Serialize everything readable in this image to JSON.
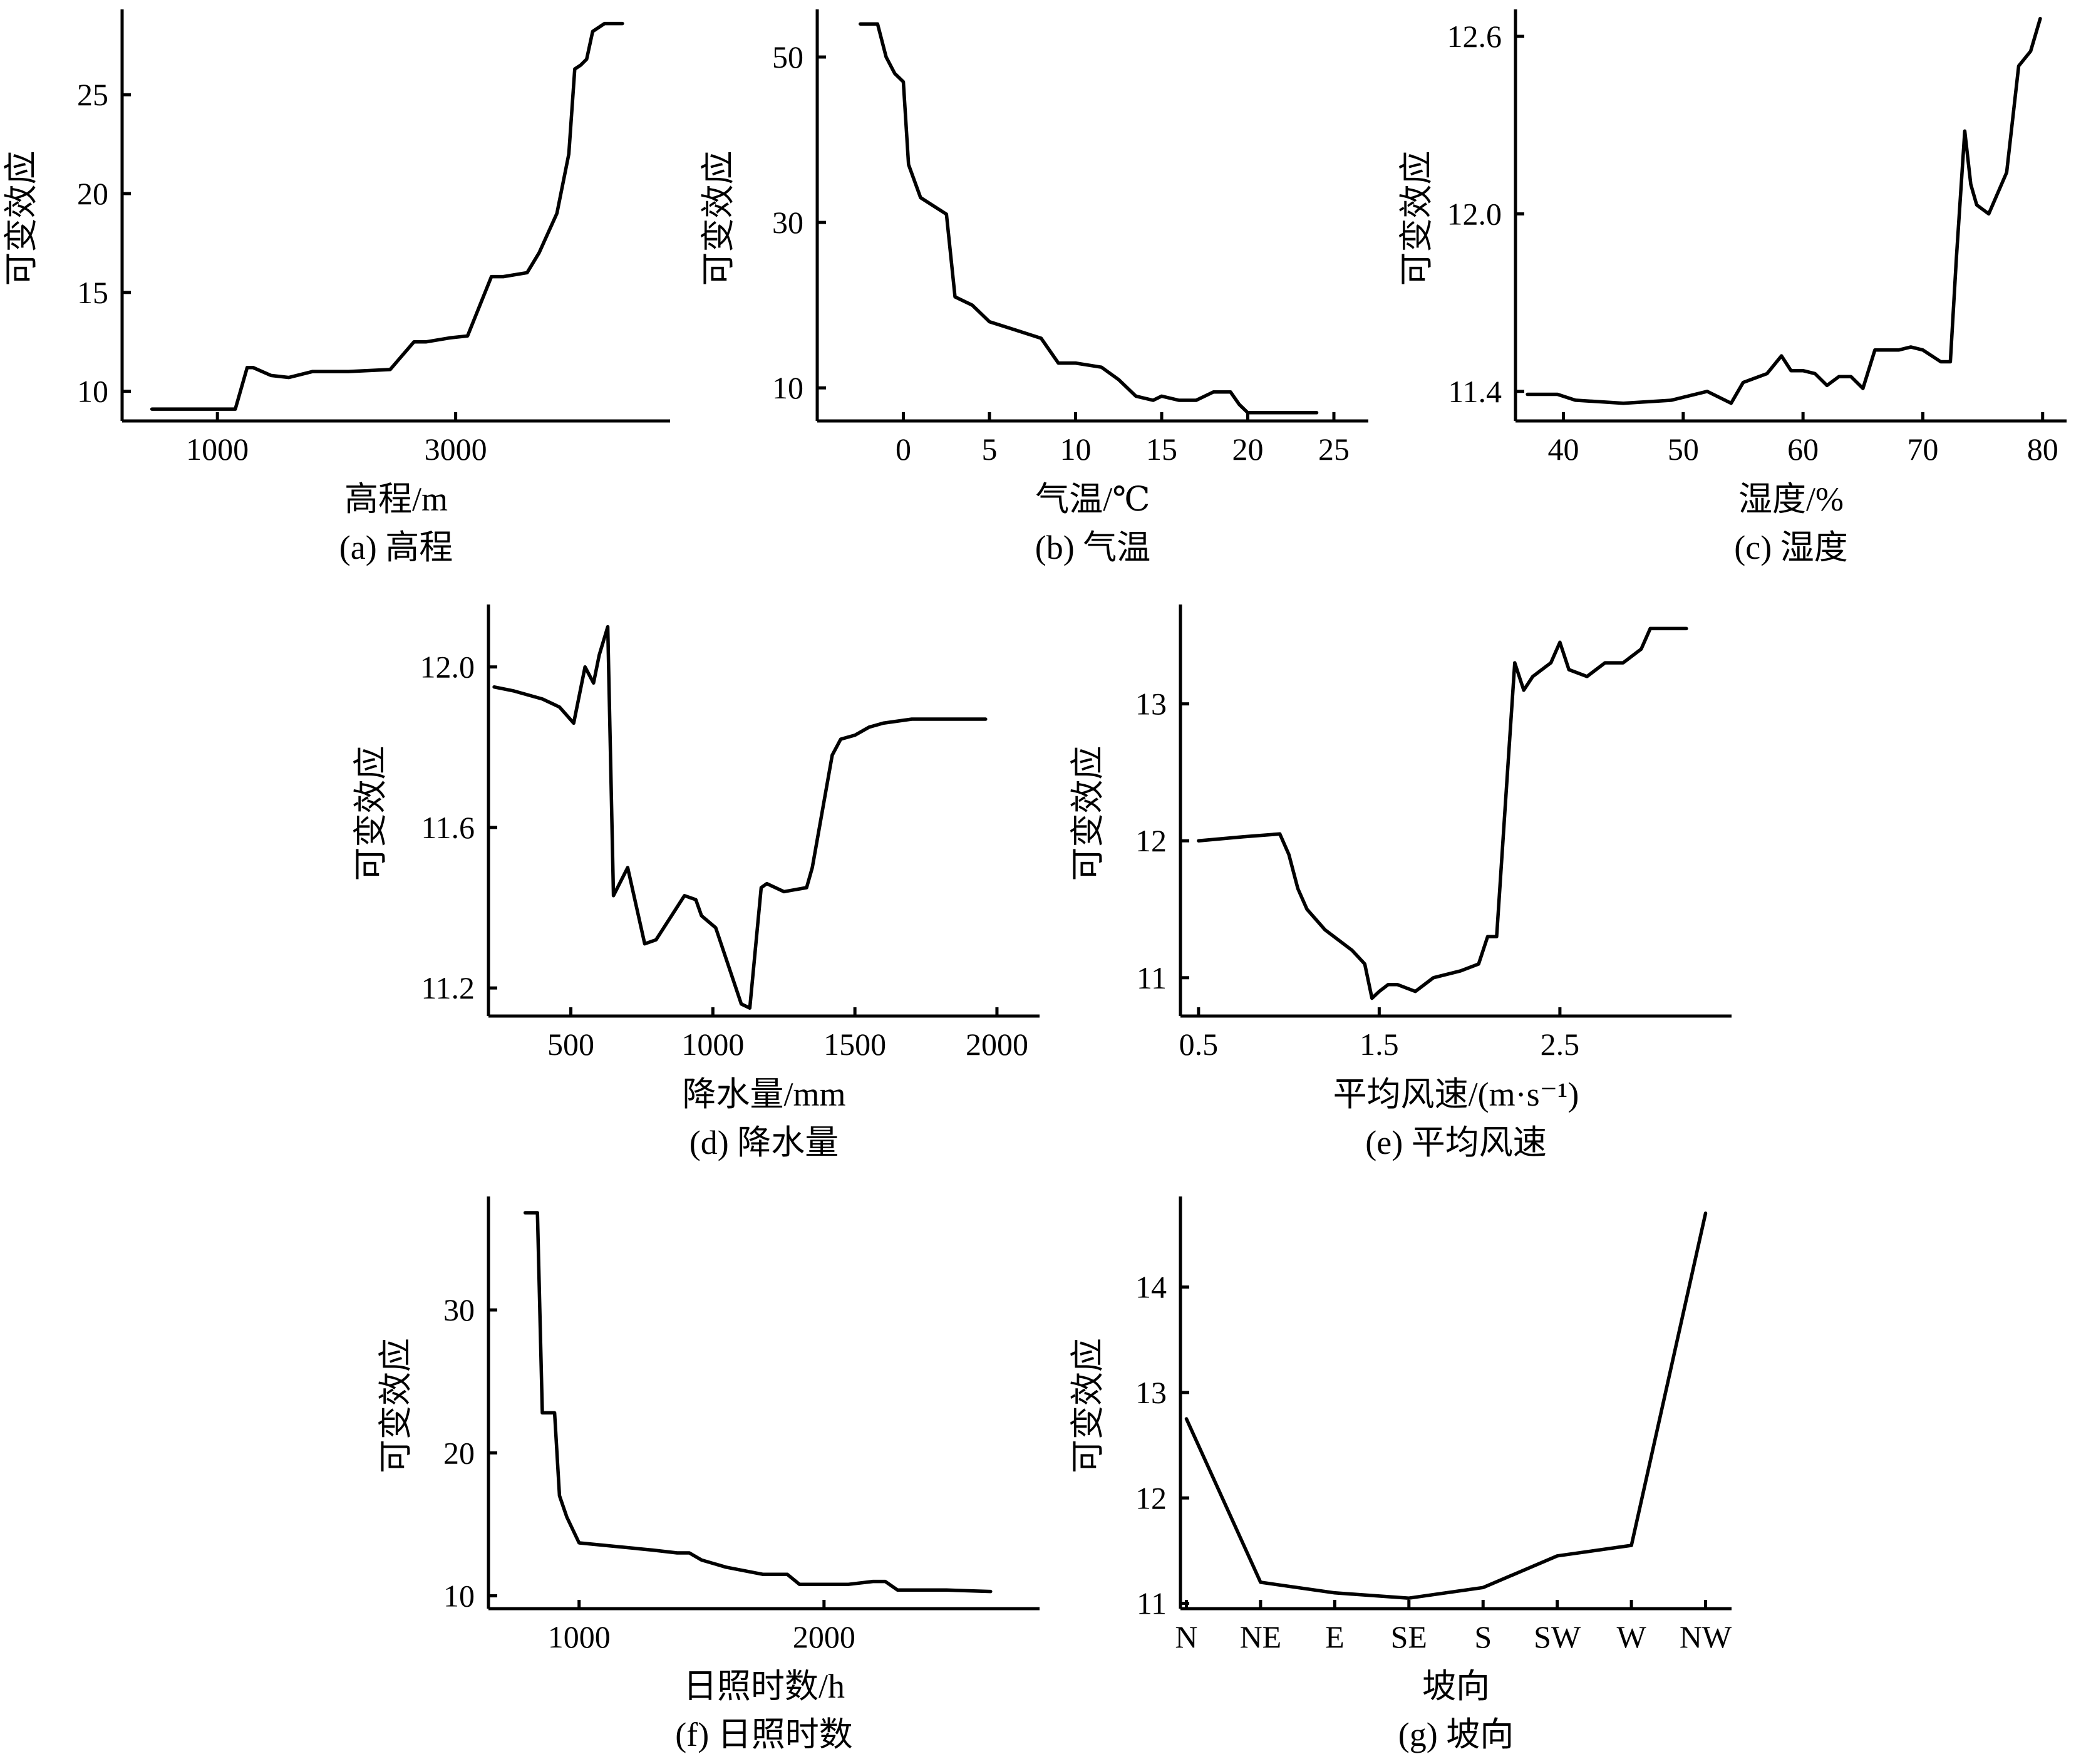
{
  "chart_data": [
    {
      "id": "a",
      "type": "line",
      "caption": "(a) 高程",
      "xlabel": "高程/m",
      "ylabel": "可变效应",
      "xlim": [
        200,
        4800
      ],
      "ylim": [
        8.5,
        29
      ],
      "xticks": [
        1000,
        3000
      ],
      "yticks": [
        10,
        15,
        20,
        25
      ],
      "x": [
        450,
        800,
        1150,
        1250,
        1300,
        1450,
        1600,
        1800,
        2100,
        2450,
        2650,
        2750,
        2950,
        3100,
        3300,
        3400,
        3600,
        3700,
        3850,
        3950,
        4000,
        4050,
        4100,
        4150,
        4250,
        4300,
        4400
      ],
      "y": [
        9.1,
        9.1,
        9.1,
        11.2,
        11.2,
        10.8,
        10.7,
        11.0,
        11.0,
        11.1,
        12.5,
        12.5,
        12.7,
        12.8,
        15.8,
        15.8,
        16.0,
        17.0,
        19.0,
        22.0,
        26.3,
        26.5,
        26.8,
        28.2,
        28.6,
        28.6,
        28.6
      ],
      "grid": false
    },
    {
      "id": "b",
      "type": "line",
      "caption": "(b) 气温",
      "xlabel": "气温/℃",
      "ylabel": "可变效应",
      "xlim": [
        -5,
        27
      ],
      "ylim": [
        6,
        55
      ],
      "xticks": [
        0,
        5,
        10,
        15,
        20,
        25
      ],
      "yticks": [
        10,
        30,
        50
      ],
      "x": [
        -2.5,
        -1.5,
        -1.0,
        -0.5,
        0.0,
        0.3,
        1.0,
        2.5,
        3.0,
        4.0,
        5.0,
        6.5,
        8.0,
        9.0,
        10.0,
        11.5,
        12.5,
        13.5,
        14.5,
        15.0,
        16.0,
        17.0,
        18.0,
        19.0,
        19.5,
        20.0,
        24.0
      ],
      "y": [
        54,
        54,
        50,
        48,
        47,
        37,
        33,
        31,
        21,
        20,
        18,
        17,
        16,
        13,
        13,
        12.5,
        11,
        9,
        8.5,
        9,
        8.5,
        8.5,
        9.5,
        9.5,
        8,
        7,
        7
      ],
      "grid": false
    },
    {
      "id": "c",
      "type": "line",
      "caption": "(c) 湿度",
      "xlabel": "湿度/%",
      "ylabel": "可变效应",
      "xlim": [
        36,
        82
      ],
      "ylim": [
        11.3,
        12.67
      ],
      "xticks": [
        40,
        50,
        60,
        70,
        80
      ],
      "yticks": [
        11.4,
        12.0,
        12.6
      ],
      "x": [
        37,
        39.5,
        41,
        45,
        49,
        52,
        54,
        55,
        57,
        58.2,
        59,
        60,
        61,
        62,
        63,
        64,
        65,
        66,
        68,
        69,
        70,
        71.5,
        72.3,
        72.8,
        73.5,
        74,
        74.5,
        75.5,
        77,
        78,
        79,
        79.8
      ],
      "y": [
        11.39,
        11.39,
        11.37,
        11.36,
        11.37,
        11.4,
        11.36,
        11.43,
        11.46,
        11.52,
        11.47,
        11.47,
        11.46,
        11.42,
        11.45,
        11.45,
        11.41,
        11.54,
        11.54,
        11.55,
        11.54,
        11.5,
        11.5,
        11.85,
        12.28,
        12.1,
        12.03,
        12.0,
        12.14,
        12.5,
        12.55,
        12.66
      ],
      "grid": false
    },
    {
      "id": "d",
      "type": "line",
      "caption": "(d) 降水量",
      "xlabel": "降水量/mm",
      "ylabel": "可变效应",
      "xlim": [
        210,
        2150
      ],
      "ylim": [
        11.13,
        12.14
      ],
      "xticks": [
        500,
        1000,
        1500,
        2000
      ],
      "yticks": [
        11.2,
        11.6,
        12.0
      ],
      "x": [
        230,
        300,
        400,
        460,
        510,
        550,
        580,
        600,
        630,
        650,
        700,
        760,
        800,
        900,
        940,
        960,
        1010,
        1100,
        1130,
        1170,
        1190,
        1250,
        1330,
        1350,
        1420,
        1450,
        1500,
        1550,
        1600,
        1700,
        1800,
        1960
      ],
      "y": [
        11.95,
        11.94,
        11.92,
        11.9,
        11.86,
        12.0,
        11.96,
        12.03,
        12.1,
        11.43,
        11.5,
        11.31,
        11.32,
        11.43,
        11.42,
        11.38,
        11.35,
        11.16,
        11.15,
        11.45,
        11.46,
        11.44,
        11.45,
        11.5,
        11.78,
        11.82,
        11.83,
        11.85,
        11.86,
        11.87,
        11.87,
        11.87
      ],
      "grid": false
    },
    {
      "id": "e",
      "type": "line",
      "caption": "(e) 平均风速",
      "xlabel": "平均风速/(m·s⁻¹)",
      "ylabel": "可变效应",
      "xlim": [
        0.4,
        3.45
      ],
      "ylim": [
        10.72,
        13.68
      ],
      "xticks": [
        0.5,
        1.5,
        2.5
      ],
      "yticks": [
        11,
        12,
        13
      ],
      "x": [
        0.5,
        0.75,
        0.95,
        1.0,
        1.05,
        1.1,
        1.2,
        1.3,
        1.35,
        1.42,
        1.46,
        1.5,
        1.55,
        1.6,
        1.7,
        1.8,
        1.95,
        2.05,
        2.1,
        2.15,
        2.2,
        2.25,
        2.3,
        2.35,
        2.45,
        2.5,
        2.55,
        2.65,
        2.75,
        2.85,
        2.95,
        3.0,
        3.2
      ],
      "y": [
        12.0,
        12.03,
        12.05,
        11.9,
        11.65,
        11.5,
        11.35,
        11.25,
        11.2,
        11.1,
        10.85,
        10.9,
        10.95,
        10.95,
        10.9,
        11.0,
        11.05,
        11.1,
        11.3,
        11.3,
        12.3,
        13.3,
        13.1,
        13.2,
        13.3,
        13.45,
        13.25,
        13.2,
        13.3,
        13.3,
        13.4,
        13.55,
        13.55
      ],
      "grid": false
    },
    {
      "id": "f",
      "type": "line",
      "caption": "(f) 日照时数",
      "xlabel": "日照时数/h",
      "ylabel": "可变效应",
      "xlim": [
        630,
        2880
      ],
      "ylim": [
        9.1,
        37.5
      ],
      "xticks": [
        1000,
        2000
      ],
      "yticks": [
        10,
        20,
        30
      ],
      "x": [
        780,
        830,
        850,
        900,
        920,
        950,
        1000,
        1300,
        1400,
        1450,
        1500,
        1600,
        1750,
        1850,
        1900,
        2000,
        2100,
        2200,
        2250,
        2300,
        2500,
        2680
      ],
      "y": [
        36.8,
        36.8,
        22.8,
        22.8,
        17.0,
        15.5,
        13.7,
        13.2,
        13.0,
        13.0,
        12.5,
        12.0,
        11.5,
        11.5,
        10.8,
        10.8,
        10.8,
        11.0,
        11.0,
        10.4,
        10.4,
        10.3
      ],
      "grid": false
    },
    {
      "id": "g",
      "type": "line",
      "caption": "(g) 坡向",
      "xlabel": "坡向",
      "ylabel": "可变效应",
      "categories": [
        "N",
        "NE",
        "E",
        "SE",
        "S",
        "SW",
        "W",
        "NW"
      ],
      "xlim": [
        -0.08,
        7.35
      ],
      "ylim": [
        10.95,
        14.8
      ],
      "yticks": [
        11,
        12,
        13,
        14
      ],
      "x": [
        0,
        1,
        2,
        3,
        4,
        5,
        6,
        7
      ],
      "y": [
        12.75,
        11.2,
        11.1,
        11.05,
        11.15,
        11.45,
        11.55,
        14.7
      ],
      "grid": false
    }
  ]
}
